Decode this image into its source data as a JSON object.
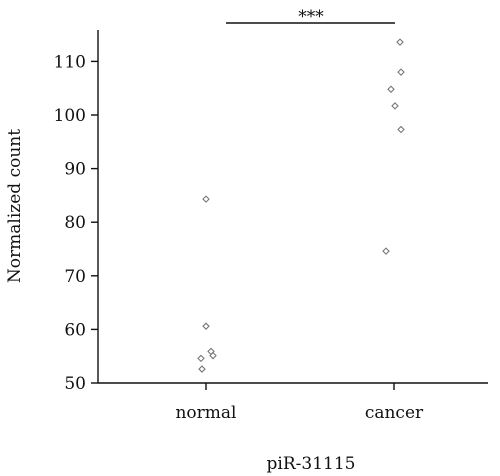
{
  "chart_data": {
    "type": "scatter",
    "xlabel": "piR-31115",
    "ylabel": "Normalized count",
    "categories": [
      "normal",
      "cancer"
    ],
    "ylim": [
      50,
      115
    ],
    "yticks": [
      50,
      60,
      70,
      80,
      90,
      100,
      110
    ],
    "series": [
      {
        "category": "normal",
        "values": [
          84.3,
          60.6,
          55.9,
          55.1,
          54.6,
          52.6
        ]
      },
      {
        "category": "cancer",
        "values": [
          113.6,
          108.0,
          104.8,
          101.7,
          97.3,
          74.6
        ]
      }
    ],
    "significance": {
      "label": "***",
      "between": [
        "normal",
        "cancer"
      ]
    },
    "marker": "open-diamond",
    "grid": false
  }
}
